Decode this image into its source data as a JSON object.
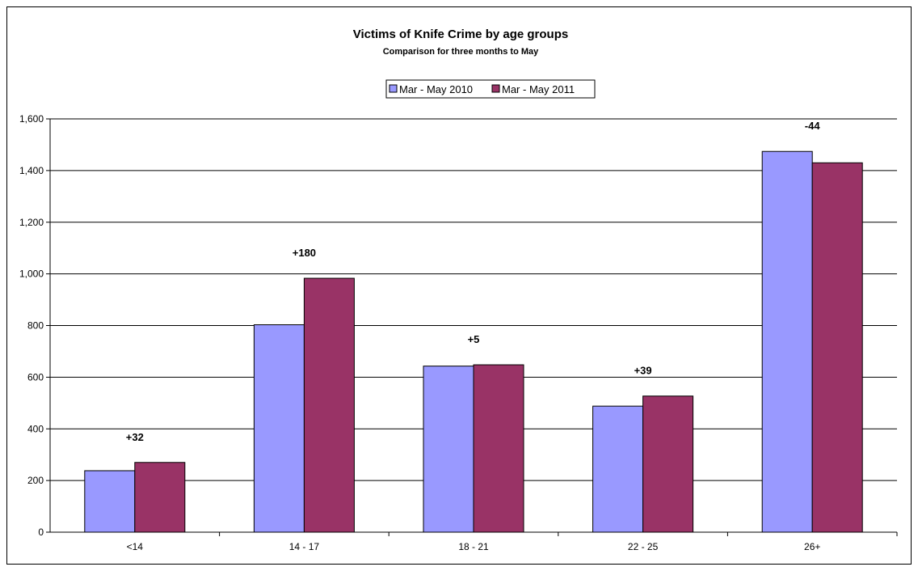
{
  "chart_data": {
    "type": "bar",
    "title": "Victims of Knife Crime by age groups",
    "subtitle": "Comparison for three months to May",
    "categories": [
      "<14",
      "14 - 17",
      "18 - 21",
      "22 - 25",
      "26+"
    ],
    "series": [
      {
        "name": "Mar - May 2010",
        "values": [
          238,
          803,
          643,
          488,
          1474
        ],
        "color": "#9999ff"
      },
      {
        "name": "Mar - May 2011",
        "values": [
          270,
          983,
          648,
          527,
          1430
        ],
        "color": "#993366"
      }
    ],
    "annotations": [
      "+32",
      "+180",
      "+5",
      "+39",
      "-44"
    ],
    "ylim": [
      0,
      1600
    ],
    "yticks": [
      0,
      200,
      400,
      600,
      800,
      1000,
      1200,
      1400,
      1600
    ],
    "ytick_labels": [
      "0",
      "200",
      "400",
      "600",
      "800",
      "1,000",
      "1,200",
      "1,400",
      "1,600"
    ],
    "grid": true,
    "legend_position": "top-center"
  }
}
